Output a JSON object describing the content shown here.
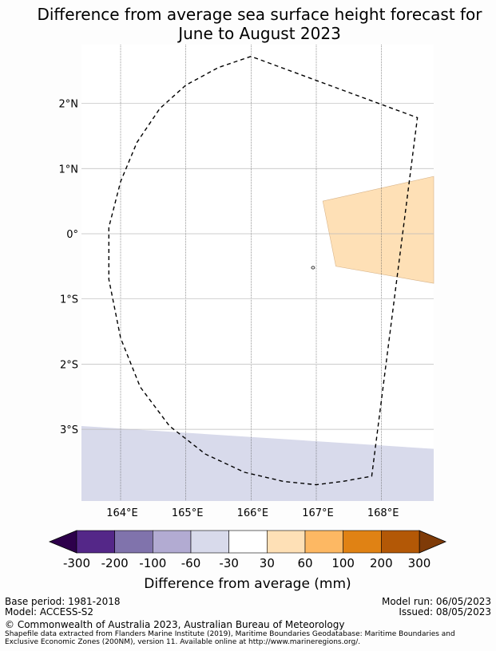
{
  "title": {
    "line1": "Difference from average sea surface height forecast for",
    "line2": "June to August 2023"
  },
  "map": {
    "lon_range": [
      163.4,
      168.8
    ],
    "lat_range": [
      -4.1,
      2.9
    ],
    "lon_ticks": [
      "164°E",
      "165°E",
      "166°E",
      "167°E",
      "168°E"
    ],
    "lat_ticks": [
      "2°N",
      "1°N",
      "0°",
      "1°S",
      "2°S",
      "3°S"
    ],
    "regions": [
      {
        "category": "30 to 60",
        "color": "#fee0b6",
        "lonlat": [
          [
            167.1,
            0.5
          ],
          [
            168.8,
            0.88
          ],
          [
            168.8,
            -0.76
          ],
          [
            167.3,
            -0.5
          ]
        ]
      },
      {
        "category": "-60 to -30",
        "color": "#d8daeb",
        "lonlat": [
          [
            163.4,
            -2.95
          ],
          [
            168.8,
            -3.3
          ],
          [
            168.8,
            -4.1
          ],
          [
            163.4,
            -4.1
          ]
        ]
      }
    ],
    "eez_boundary": [
      [
        166.0,
        2.72
      ],
      [
        165.5,
        2.55
      ],
      [
        165.0,
        2.28
      ],
      [
        164.6,
        1.92
      ],
      [
        164.25,
        1.4
      ],
      [
        164.0,
        0.8
      ],
      [
        163.82,
        0.1
      ],
      [
        163.82,
        -0.7
      ],
      [
        164.0,
        -1.6
      ],
      [
        164.3,
        -2.35
      ],
      [
        164.75,
        -2.95
      ],
      [
        165.3,
        -3.38
      ],
      [
        165.9,
        -3.66
      ],
      [
        166.5,
        -3.8
      ],
      [
        167.0,
        -3.85
      ],
      [
        167.4,
        -3.8
      ],
      [
        167.85,
        -3.72
      ],
      [
        168.55,
        1.78
      ],
      [
        166.0,
        2.72
      ]
    ],
    "island_marker": [
      166.95,
      -0.52
    ]
  },
  "colorbar": {
    "labels": [
      "-300",
      "-200",
      "-100",
      "-60",
      "-30",
      "30",
      "60",
      "100",
      "200",
      "300"
    ],
    "colors": [
      "#542788",
      "#8073ac",
      "#b2abd2",
      "#d8daeb",
      "#ffffff",
      "#fee0b6",
      "#fdb863",
      "#e08214",
      "#b35806"
    ],
    "under_color": "#2d004b",
    "over_color": "#7f3b08",
    "label": "Difference from average (mm)"
  },
  "footer": {
    "base_period": "Base period: 1981-2018",
    "model": "Model: ACCESS-S2",
    "model_run": "Model run: 06/05/2023",
    "issued": "Issued: 08/05/2023",
    "copyright": "© Commonwealth of Australia 2023, Australian Bureau of Meteorology",
    "shapefile_line1": "Shapefile data extracted from Flanders Marine Institute (2019), Maritime Boundaries Geodatabase: Maritime Boundaries and",
    "shapefile_line2": "Exclusive Economic Zones (200NM), version 11. Available online at http://www.marineregions.org/."
  }
}
